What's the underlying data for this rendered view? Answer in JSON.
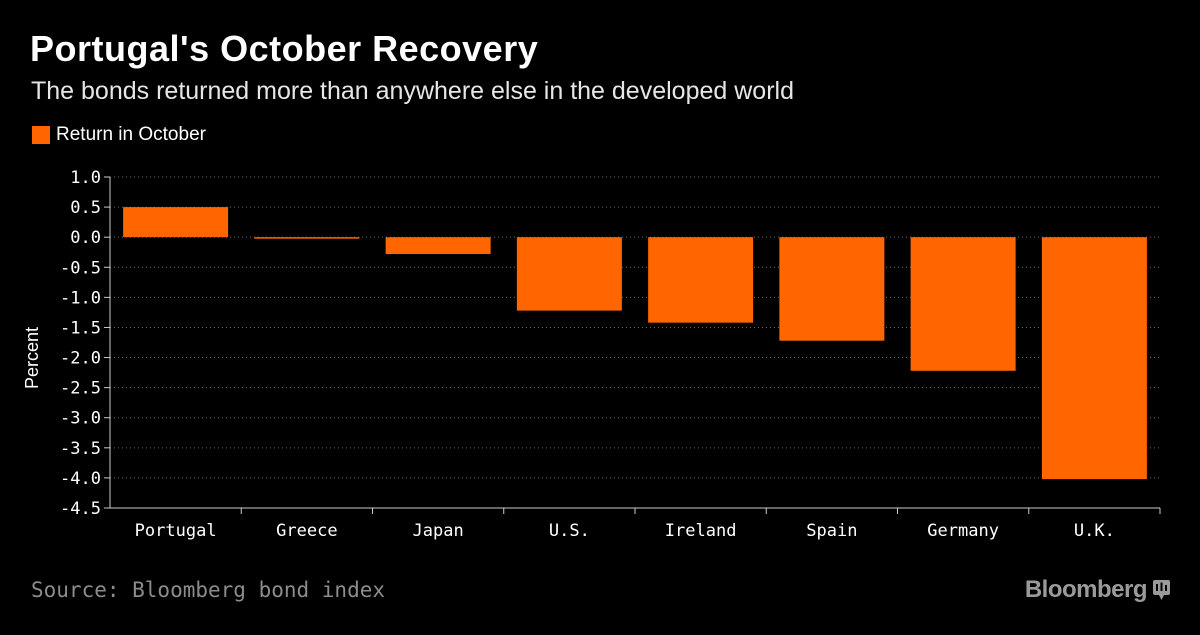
{
  "header": {
    "title": "Portugal's October Recovery",
    "subtitle": "The bonds returned more than anywhere else in the developed world"
  },
  "legend": {
    "label": "Return in October"
  },
  "footer": {
    "source": "Source: Bloomberg bond index",
    "brand": "Bloomberg",
    "brand_icon": "bloomberg-terminal-icon"
  },
  "colors": {
    "bar": "#ff6600",
    "background": "#000000",
    "grid": "#6b6b6b"
  },
  "chart_data": {
    "type": "bar",
    "title": "Portugal's October Recovery",
    "subtitle": "The bonds returned more than anywhere else in the developed world",
    "categories": [
      "Portugal",
      "Greece",
      "Japan",
      "U.S.",
      "Ireland",
      "Spain",
      "Germany",
      "U.K."
    ],
    "series": [
      {
        "name": "Return in October",
        "values": [
          0.5,
          -0.01,
          -0.28,
          -1.22,
          -1.42,
          -1.72,
          -2.22,
          -4.02
        ]
      }
    ],
    "xlabel": "",
    "ylabel": "Percent",
    "ylim": [
      -4.5,
      1.0
    ],
    "yticks": [
      "1.0",
      "0.5",
      "0.0",
      "-0.5",
      "-1.0",
      "-1.5",
      "-2.0",
      "-2.5",
      "-3.0",
      "-3.5",
      "-4.0",
      "-4.5"
    ],
    "grid": true,
    "legend_position": "top-left"
  }
}
